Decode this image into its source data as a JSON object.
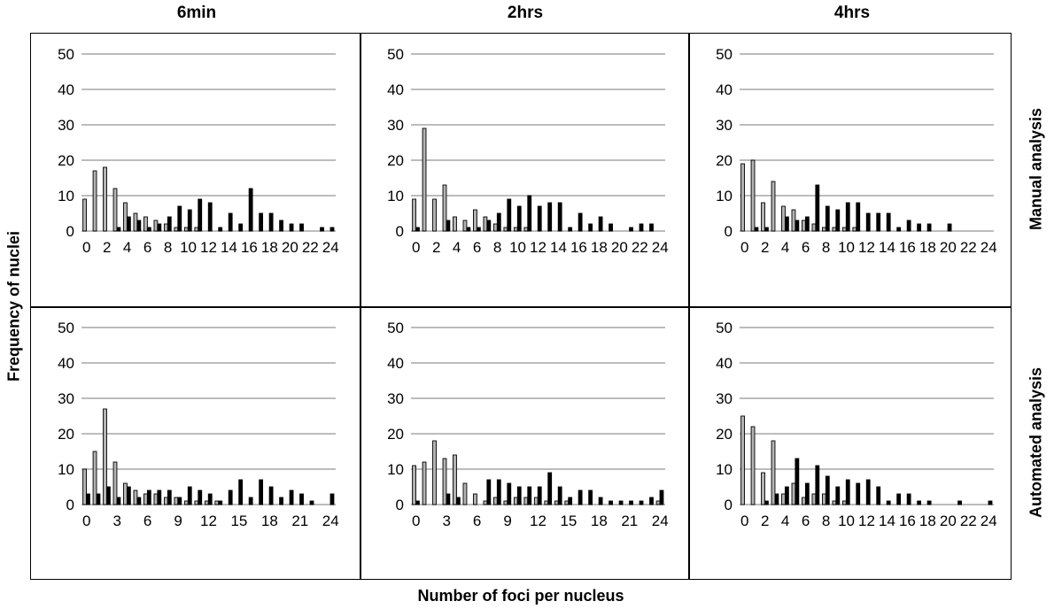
{
  "figure": {
    "col_titles": [
      "6min",
      "2hrs",
      "4hrs"
    ],
    "row_titles": [
      "Manual analysis",
      "Automated analysis"
    ],
    "ylabel": "Frequency of nuclei",
    "xlabel": "Number of foci per nucleus"
  },
  "colors": {
    "grey_series": "#b3b3b3",
    "black_series": "#000000",
    "gridline": "#a6a6a6"
  },
  "chart_data": [
    {
      "type": "bar",
      "panel": "Manual analysis - 6min",
      "x": [
        0,
        1,
        2,
        3,
        4,
        5,
        6,
        7,
        8,
        9,
        10,
        11,
        12,
        13,
        14,
        15,
        16,
        17,
        18,
        19,
        20,
        21,
        22,
        23,
        24
      ],
      "xticks": [
        "0",
        "2",
        "4",
        "6",
        "8",
        "10",
        "12",
        "14",
        "16",
        "18",
        "20",
        "22",
        "24"
      ],
      "ylim": [
        0,
        50
      ],
      "yticks": [
        0,
        10,
        20,
        30,
        40,
        50
      ],
      "grid": true,
      "series": [
        {
          "values": [
            9,
            17,
            18,
            12,
            8,
            5,
            4,
            3,
            2,
            1,
            1,
            1,
            0,
            0,
            0,
            0,
            0,
            0,
            0,
            0,
            0,
            0,
            0,
            0,
            0
          ]
        },
        {
          "values": [
            0,
            0,
            0,
            1,
            4,
            3,
            1,
            2,
            4,
            7,
            6,
            9,
            8,
            1,
            5,
            2,
            12,
            5,
            5,
            3,
            2,
            2,
            0,
            1,
            1
          ]
        }
      ]
    },
    {
      "type": "bar",
      "panel": "Manual analysis - 2hrs",
      "x": [
        0,
        1,
        2,
        3,
        4,
        5,
        6,
        7,
        8,
        9,
        10,
        11,
        12,
        13,
        14,
        15,
        16,
        17,
        18,
        19,
        20,
        21,
        22,
        23,
        24
      ],
      "xticks": [
        "0",
        "2",
        "4",
        "6",
        "8",
        "10",
        "12",
        "14",
        "16",
        "18",
        "20",
        "22",
        "24"
      ],
      "ylim": [
        0,
        50
      ],
      "yticks": [
        0,
        10,
        20,
        30,
        40,
        50
      ],
      "grid": true,
      "series": [
        {
          "values": [
            9,
            29,
            9,
            13,
            4,
            3,
            6,
            4,
            2,
            1,
            1,
            1,
            0,
            0,
            0,
            0,
            0,
            0,
            0,
            0,
            0,
            0,
            0,
            0,
            0
          ]
        },
        {
          "values": [
            1,
            0,
            0,
            3,
            0,
            1,
            1,
            3,
            5,
            9,
            7,
            10,
            7,
            8,
            8,
            1,
            5,
            2,
            4,
            2,
            0,
            1,
            2,
            2,
            0
          ]
        }
      ]
    },
    {
      "type": "bar",
      "panel": "Manual analysis - 4hrs",
      "x": [
        0,
        1,
        2,
        3,
        4,
        5,
        6,
        7,
        8,
        9,
        10,
        11,
        12,
        13,
        14,
        15,
        16,
        17,
        18,
        19,
        20,
        21,
        22,
        23,
        24
      ],
      "xticks": [
        "0",
        "2",
        "4",
        "6",
        "8",
        "10",
        "12",
        "14",
        "16",
        "18",
        "20",
        "22",
        "24"
      ],
      "ylim": [
        0,
        50
      ],
      "yticks": [
        0,
        10,
        20,
        30,
        40,
        50
      ],
      "grid": true,
      "series": [
        {
          "values": [
            19,
            20,
            8,
            14,
            7,
            6,
            3,
            2,
            1,
            1,
            1,
            1,
            0,
            0,
            0,
            0,
            0,
            0,
            0,
            0,
            0,
            0,
            0,
            0,
            0
          ]
        },
        {
          "values": [
            0,
            1,
            1,
            0,
            4,
            3,
            4,
            13,
            7,
            6,
            8,
            8,
            5,
            5,
            5,
            1,
            3,
            2,
            2,
            0,
            2,
            0,
            0,
            0,
            0
          ]
        }
      ]
    },
    {
      "type": "bar",
      "panel": "Automated analysis - 6min",
      "x": [
        0,
        1,
        2,
        3,
        4,
        5,
        6,
        7,
        8,
        9,
        10,
        11,
        12,
        13,
        14,
        15,
        16,
        17,
        18,
        19,
        20,
        21,
        22,
        23,
        24
      ],
      "xticks": [
        "0",
        "3",
        "6",
        "9",
        "12",
        "15",
        "18",
        "21",
        "24"
      ],
      "ylim": [
        0,
        50
      ],
      "yticks": [
        0,
        10,
        20,
        30,
        40,
        50
      ],
      "grid": true,
      "series": [
        {
          "values": [
            10,
            15,
            27,
            12,
            6,
            4,
            3,
            3,
            2,
            2,
            1,
            1,
            1,
            1,
            0,
            0,
            0,
            0,
            0,
            0,
            0,
            0,
            0,
            0,
            0
          ]
        },
        {
          "values": [
            3,
            3,
            5,
            2,
            5,
            2,
            4,
            4,
            4,
            2,
            5,
            4,
            3,
            1,
            4,
            7,
            2,
            7,
            5,
            2,
            4,
            3,
            1,
            0,
            3
          ]
        }
      ]
    },
    {
      "type": "bar",
      "panel": "Automated analysis - 2hrs",
      "x": [
        0,
        1,
        2,
        3,
        4,
        5,
        6,
        7,
        8,
        9,
        10,
        11,
        12,
        13,
        14,
        15,
        16,
        17,
        18,
        19,
        20,
        21,
        22,
        23,
        24
      ],
      "xticks": [
        "0",
        "3",
        "6",
        "9",
        "12",
        "15",
        "18",
        "21",
        "24"
      ],
      "ylim": [
        0,
        50
      ],
      "yticks": [
        0,
        10,
        20,
        30,
        40,
        50
      ],
      "grid": true,
      "series": [
        {
          "values": [
            11,
            12,
            18,
            13,
            14,
            6,
            3,
            1,
            2,
            1,
            2,
            2,
            2,
            1,
            1,
            1,
            0,
            0,
            0,
            0,
            0,
            0,
            0,
            0,
            1
          ]
        },
        {
          "values": [
            1,
            0,
            0,
            3,
            2,
            0,
            0,
            7,
            7,
            6,
            5,
            5,
            5,
            9,
            5,
            2,
            4,
            4,
            2,
            1,
            1,
            1,
            1,
            2,
            4
          ]
        }
      ]
    },
    {
      "type": "bar",
      "panel": "Automated analysis - 4hrs",
      "x": [
        0,
        1,
        2,
        3,
        4,
        5,
        6,
        7,
        8,
        9,
        10,
        11,
        12,
        13,
        14,
        15,
        16,
        17,
        18,
        19,
        20,
        21,
        22,
        23,
        24
      ],
      "xticks": [
        "0",
        "2",
        "4",
        "6",
        "8",
        "10",
        "12",
        "14",
        "16",
        "18",
        "20",
        "22",
        "24"
      ],
      "ylim": [
        0,
        50
      ],
      "yticks": [
        0,
        10,
        20,
        30,
        40,
        50
      ],
      "grid": true,
      "series": [
        {
          "values": [
            25,
            22,
            9,
            18,
            3,
            6,
            2,
            3,
            3,
            1,
            1,
            0,
            0,
            0,
            0,
            0,
            0,
            0,
            0,
            0,
            0,
            0,
            0,
            0,
            0
          ]
        },
        {
          "values": [
            0,
            0,
            1,
            3,
            5,
            13,
            6,
            11,
            8,
            5,
            7,
            6,
            7,
            5,
            1,
            3,
            3,
            1,
            1,
            0,
            0,
            1,
            0,
            0,
            1
          ]
        }
      ]
    }
  ]
}
